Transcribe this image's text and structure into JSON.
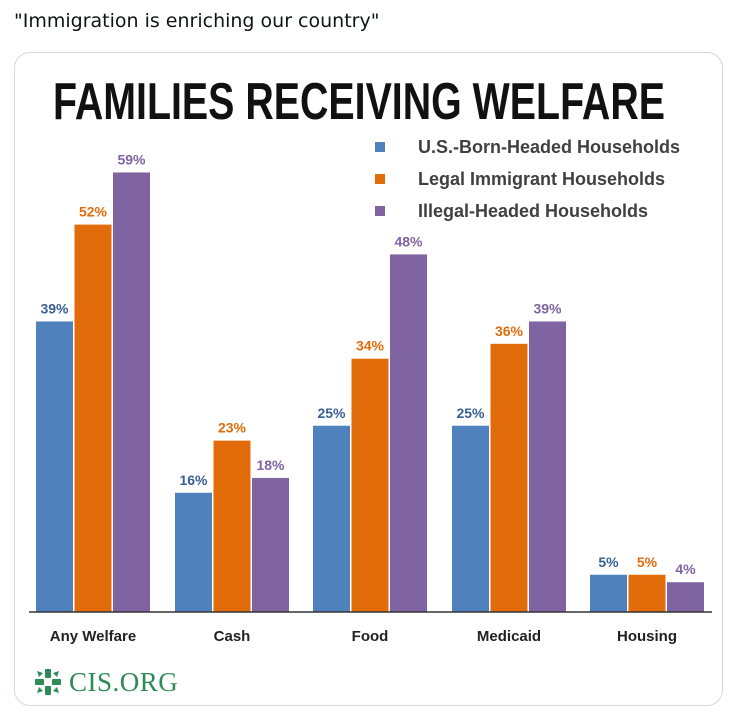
{
  "post": {
    "caption": "\"Immigration is enriching our country\""
  },
  "logo": {
    "text": "CIS.ORG",
    "icon": "cis-logo-icon",
    "color": "#2e8b57"
  },
  "chart_data": {
    "type": "bar",
    "title": "FAMILIES RECEIVING WELFARE",
    "xlabel": "",
    "ylabel": "",
    "ylim": [
      0,
      60
    ],
    "grid": false,
    "legend_position": "top-right",
    "categories": [
      "Any Welfare",
      "Cash",
      "Food",
      "Medicaid",
      "Housing"
    ],
    "series": [
      {
        "name": "U.S.-Born-Headed Households",
        "color": "#4f81bd",
        "label_color": "#3a5f95",
        "values": [
          39,
          16,
          25,
          25,
          5
        ],
        "labels": [
          "39%",
          "16%",
          "25%",
          "25%",
          "5%"
        ]
      },
      {
        "name": "Legal Immigrant Households",
        "color": "#e36c0a",
        "label_color": "#e36c0a",
        "values": [
          52,
          23,
          34,
          36,
          5
        ],
        "labels": [
          "52%",
          "23%",
          "34%",
          "36%",
          "5%"
        ]
      },
      {
        "name": "Illegal-Headed Households",
        "color": "#8064a2",
        "label_color": "#8064a2",
        "values": [
          59,
          18,
          48,
          39,
          4
        ],
        "labels": [
          "59%",
          "18%",
          "48%",
          "39%",
          "4%"
        ]
      }
    ]
  }
}
